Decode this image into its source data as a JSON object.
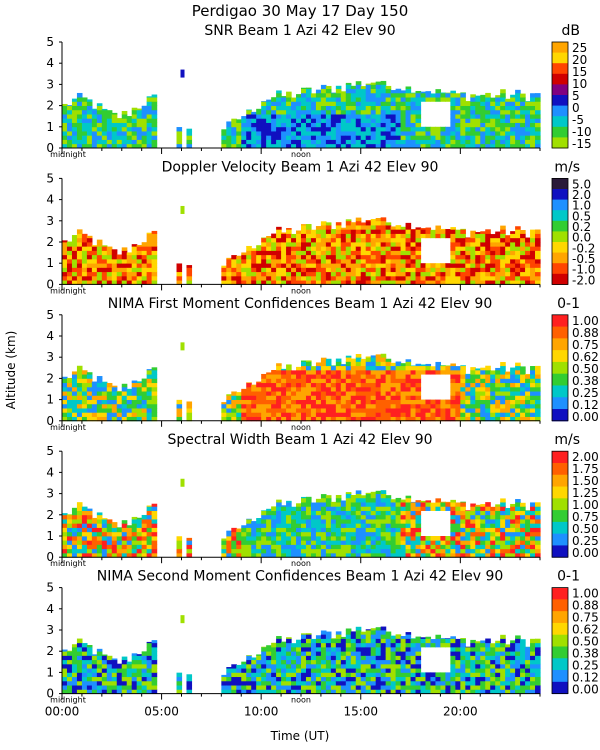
{
  "title": "Perdigao  30 May 17 Day 150",
  "ylabel": "Altitude (km)",
  "xlabel": "Time (UT)",
  "x_ticks": [
    "00:00",
    "05:00",
    "10:00",
    "15:00",
    "20:00"
  ],
  "x_tick_hours": [
    0,
    5,
    10,
    15,
    20
  ],
  "markers": [
    "midnight",
    "noon"
  ],
  "chart_data": [
    {
      "type": "heatmap",
      "title": "SNR Beam 1 Azi  42 Elev 90",
      "units": "dB",
      "x_range_hours": [
        0,
        24
      ],
      "ylim_km": [
        0,
        5
      ],
      "y_ticks": [
        "0",
        "1",
        "2",
        "3",
        "4",
        "5"
      ],
      "colorbar_labels": [
        "25",
        "20",
        "15",
        "10",
        "5",
        "0",
        "-5",
        "-10",
        "-15"
      ],
      "colors": [
        "#ffa500",
        "#ffd700",
        "#ff4500",
        "#d00000",
        "#800080",
        "#1010c0",
        "#1e90ff",
        "#00c8c8",
        "#32cd32",
        "#a0e000"
      ]
    },
    {
      "type": "heatmap",
      "title": "Doppler Velocity Beam 1 Azi  42 Elev 90",
      "units": "m/s",
      "x_range_hours": [
        0,
        24
      ],
      "ylim_km": [
        0,
        5
      ],
      "y_ticks": [
        "0",
        "1",
        "2",
        "3",
        "4",
        "5"
      ],
      "colorbar_labels": [
        "5.0",
        "2.0",
        "1.0",
        "0.5",
        "0.2",
        "0.0",
        "-0.2",
        "-0.5",
        "-1.0",
        "-2.0"
      ],
      "colors": [
        "#2a1a3a",
        "#1010c0",
        "#1e90ff",
        "#00c8c8",
        "#32cd32",
        "#a0e000",
        "#ffd700",
        "#ffa500",
        "#ff4500",
        "#d00000"
      ]
    },
    {
      "type": "heatmap",
      "title": "NIMA First Moment Confidences Beam 1 Azi  42 Elev 90",
      "units": "0-1",
      "x_range_hours": [
        0,
        24
      ],
      "ylim_km": [
        0,
        5
      ],
      "y_ticks": [
        "0",
        "1",
        "2",
        "3",
        "4",
        "5"
      ],
      "colorbar_labels": [
        "1.00",
        "0.88",
        "0.75",
        "0.62",
        "0.50",
        "0.38",
        "0.25",
        "0.12",
        "0.00"
      ],
      "colors": [
        "#ff2020",
        "#ff6000",
        "#ffa500",
        "#ffd700",
        "#a0e000",
        "#32cd32",
        "#00c8c8",
        "#1e90ff",
        "#1010c0"
      ]
    },
    {
      "type": "heatmap",
      "title": "Spectral Width Beam 1 Azi  42 Elev 90",
      "units": "m/s",
      "x_range_hours": [
        0,
        24
      ],
      "ylim_km": [
        0,
        5
      ],
      "y_ticks": [
        "0",
        "1",
        "2",
        "3",
        "4",
        "5"
      ],
      "colorbar_labels": [
        "2.00",
        "1.75",
        "1.50",
        "1.25",
        "1.00",
        "0.75",
        "0.50",
        "0.25",
        "0.00"
      ],
      "colors": [
        "#ff2020",
        "#ff6000",
        "#ffa500",
        "#ffd700",
        "#a0e000",
        "#32cd32",
        "#00c8c8",
        "#1e90ff",
        "#1010c0"
      ]
    },
    {
      "type": "heatmap",
      "title": "NIMA Second Moment Confidences Beam 1 Azi  42 Elev 90",
      "units": "0-1",
      "x_range_hours": [
        0,
        24
      ],
      "ylim_km": [
        0,
        5
      ],
      "y_ticks": [
        "0",
        "1",
        "2",
        "3",
        "4",
        "5"
      ],
      "colorbar_labels": [
        "1.00",
        "0.88",
        "0.75",
        "0.62",
        "0.50",
        "0.38",
        "0.25",
        "0.12",
        "0.00"
      ],
      "colors": [
        "#ff2020",
        "#ff6000",
        "#ffa500",
        "#ffd700",
        "#a0e000",
        "#32cd32",
        "#00c8c8",
        "#1e90ff",
        "#1010c0"
      ]
    }
  ]
}
